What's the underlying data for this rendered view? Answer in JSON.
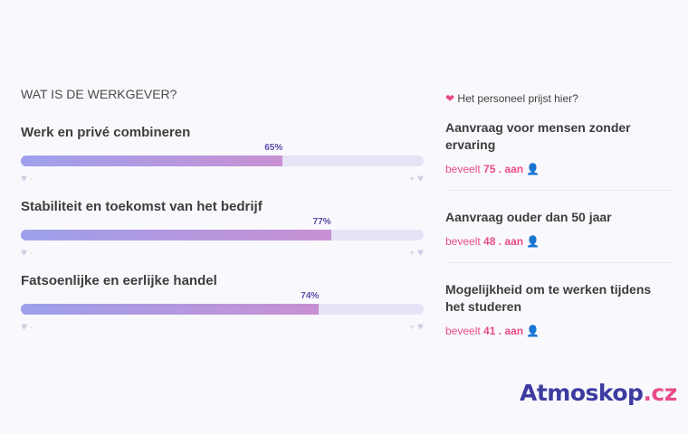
{
  "section_title": "WAT IS DE WERKGEVER?",
  "ratings": [
    {
      "label": "Werk en privé combineren",
      "percent": 65,
      "percent_label": "65%"
    },
    {
      "label": "Stabiliteit en toekomst van het bedrijf",
      "percent": 77,
      "percent_label": "77%"
    },
    {
      "label": "Fatsoenlijke en eerlijke handel",
      "percent": 74,
      "percent_label": "74%"
    }
  ],
  "scale": {
    "min_label": "-",
    "max_label": "+"
  },
  "praise": {
    "heading": "Het personeel prijst hier?",
    "items": [
      {
        "label": "Aanvraag voor mensen zonder ervaring",
        "prefix": "beveelt",
        "count": "75 . aan"
      },
      {
        "label": "Aanvraag ouder dan 50 jaar",
        "prefix": "beveelt",
        "count": "48 . aan"
      },
      {
        "label": "Mogelijkheid om te werken tijdens het studeren",
        "prefix": "beveelt",
        "count": "41 . aan"
      }
    ]
  },
  "logo": {
    "main": "Atmoskop",
    "tld": ".cz"
  },
  "colors": {
    "accent": "#e84b8a",
    "brand": "#3d3ba0",
    "bar_start": "#9da0ec",
    "bar_end": "#c890d2"
  }
}
